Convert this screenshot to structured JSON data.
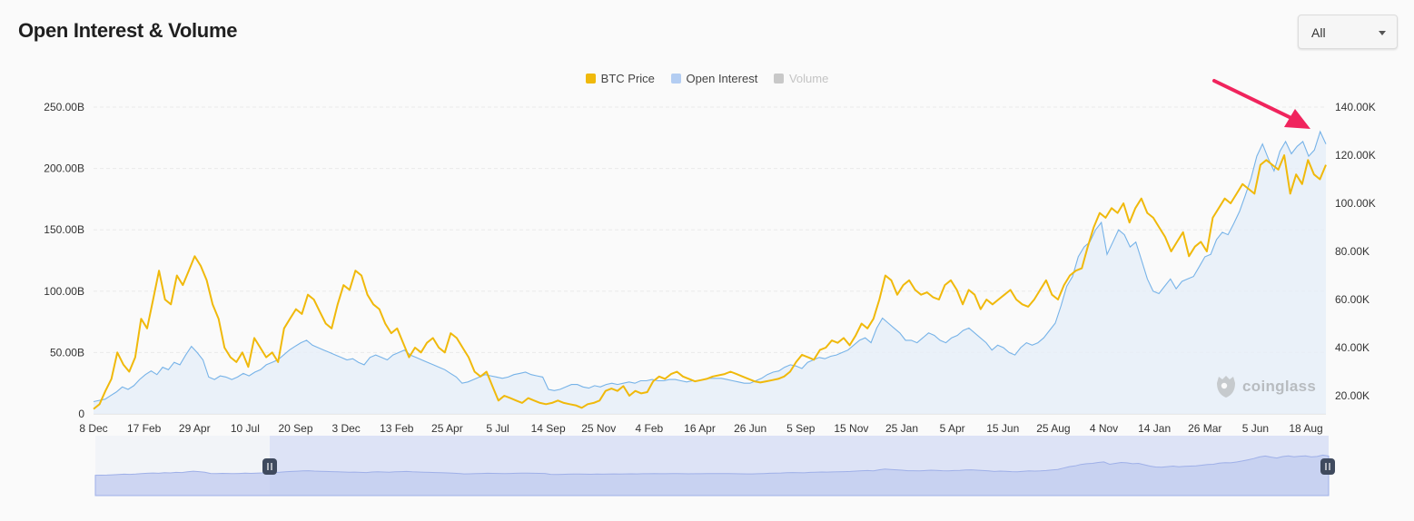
{
  "header": {
    "title": "Open Interest & Volume"
  },
  "period_select": {
    "value": "All"
  },
  "watermark": {
    "text": "coinglass",
    "icon": "coinglass-logo-icon"
  },
  "legend": [
    {
      "label": "BTC Price",
      "color": "#f0b90b",
      "enabled": true
    },
    {
      "label": "Open Interest",
      "color": "#b3cdf2",
      "enabled": true
    },
    {
      "label": "Volume",
      "color": "#c8c8c8",
      "enabled": false
    }
  ],
  "annotation": {
    "type": "arrow",
    "color": "#f0245d",
    "points_to": "latest Open Interest high"
  },
  "chart_data": {
    "type": "line",
    "x_ticks": [
      "8 Dec",
      "17 Feb",
      "29 Apr",
      "10 Jul",
      "20 Sep",
      "3 Dec",
      "13 Feb",
      "25 Apr",
      "5 Jul",
      "14 Sep",
      "25 Nov",
      "4 Feb",
      "16 Apr",
      "26 Jun",
      "5 Sep",
      "15 Nov",
      "25 Jan",
      "5 Apr",
      "15 Jun",
      "25 Aug",
      "4 Nov",
      "14 Jan",
      "26 Mar",
      "5 Jun",
      "18 Aug"
    ],
    "y_left": {
      "ticks": [
        "0",
        "50.00B",
        "100.00B",
        "150.00B",
        "200.00B",
        "250.00B"
      ],
      "min": 0,
      "max": 250
    },
    "y_right": {
      "ticks": [
        "20.00K",
        "40.00K",
        "60.00K",
        "80.00K",
        "100.00K",
        "120.00K",
        "140.00K"
      ],
      "min": 12,
      "max": 140
    },
    "grid": "horizontal dashed",
    "legend_position": "top-center",
    "series": [
      {
        "name": "BTC Price",
        "axis": "right",
        "color": "#f0b90b",
        "values": [
          14.5,
          16.5,
          22,
          27,
          38,
          33,
          30,
          36,
          52,
          48,
          60,
          72,
          60,
          58,
          70,
          66,
          72,
          78,
          74,
          68,
          58,
          52,
          40,
          36,
          34,
          38,
          32,
          44,
          40,
          36,
          38,
          34,
          48,
          52,
          56,
          54,
          62,
          60,
          55,
          50,
          48,
          58,
          66,
          64,
          72,
          70,
          62,
          58,
          56,
          50,
          46,
          48,
          42,
          36,
          40,
          38,
          42,
          44,
          40,
          38,
          46,
          44,
          40,
          36,
          30,
          28,
          30,
          24,
          18,
          20,
          19,
          18,
          17,
          19,
          18,
          17,
          16.5,
          17,
          18,
          17,
          16.5,
          16,
          15,
          16.5,
          17,
          18,
          22,
          23,
          22,
          24,
          20,
          22,
          21,
          21.5,
          26,
          28,
          27,
          29,
          30,
          28,
          27,
          26,
          26.5,
          27,
          28,
          28.5,
          29,
          30,
          29,
          28,
          27,
          26,
          25.5,
          26,
          26.5,
          27,
          28,
          30,
          34,
          37,
          36,
          35,
          39,
          40,
          43,
          42,
          44,
          41,
          45,
          50,
          48,
          52,
          60,
          70,
          68,
          62,
          66,
          68,
          64,
          62,
          63,
          61,
          60,
          66,
          68,
          64,
          58,
          64,
          62,
          56,
          60,
          58,
          60,
          62,
          64,
          60,
          58,
          57,
          60,
          64,
          68,
          62,
          60,
          66,
          70,
          72,
          73,
          82,
          90,
          96,
          94,
          98,
          96,
          100,
          92,
          98,
          102,
          96,
          94,
          90,
          86,
          80,
          84,
          88,
          78,
          82,
          84,
          80,
          94,
          98,
          102,
          100,
          104,
          108,
          106,
          104,
          116,
          118,
          116,
          114,
          120,
          104,
          112,
          108,
          118,
          112,
          110,
          116
        ]
      },
      {
        "name": "Open Interest",
        "axis": "left",
        "color": "#77b3e8",
        "values": [
          10,
          11,
          12,
          15,
          18,
          22,
          20,
          23,
          28,
          32,
          35,
          32,
          38,
          36,
          42,
          40,
          48,
          55,
          50,
          44,
          30,
          28,
          31,
          30,
          28,
          30,
          33,
          31,
          34,
          36,
          40,
          42,
          44,
          48,
          52,
          55,
          58,
          60,
          56,
          54,
          52,
          50,
          48,
          46,
          44,
          45,
          42,
          40,
          46,
          48,
          46,
          44,
          48,
          50,
          52,
          48,
          46,
          44,
          42,
          40,
          38,
          36,
          33,
          30,
          25,
          26,
          28,
          30,
          32,
          31,
          30,
          29,
          30,
          32,
          33,
          34,
          32,
          31,
          30,
          20,
          19,
          20,
          22,
          24,
          24,
          22,
          21,
          23,
          22,
          24,
          25,
          24,
          25,
          26,
          25,
          27,
          27,
          28,
          27,
          27,
          28,
          28,
          27,
          26,
          27,
          27,
          28,
          29,
          29,
          29,
          28,
          27,
          26,
          25,
          25,
          27,
          29,
          32,
          34,
          35,
          38,
          40,
          39,
          37,
          42,
          44,
          46,
          45,
          47,
          48,
          50,
          52,
          56,
          60,
          62,
          58,
          70,
          78,
          74,
          70,
          66,
          60,
          60,
          58,
          62,
          66,
          64,
          60,
          58,
          62,
          64,
          68,
          70,
          66,
          62,
          58,
          52,
          56,
          54,
          50,
          48,
          54,
          58,
          56,
          58,
          62,
          68,
          74,
          88,
          104,
          112,
          128,
          136,
          140,
          150,
          156,
          130,
          140,
          150,
          146,
          136,
          140,
          125,
          110,
          100,
          98,
          104,
          110,
          102,
          108,
          110,
          112,
          120,
          128,
          130,
          142,
          148,
          146,
          155,
          165,
          178,
          192,
          210,
          220,
          208,
          198,
          214,
          222,
          212,
          218,
          222,
          210,
          215,
          230,
          220
        ]
      },
      {
        "name": "Volume",
        "axis": "left",
        "color": "#c8c8c8",
        "hidden": true,
        "values": []
      }
    ]
  }
}
